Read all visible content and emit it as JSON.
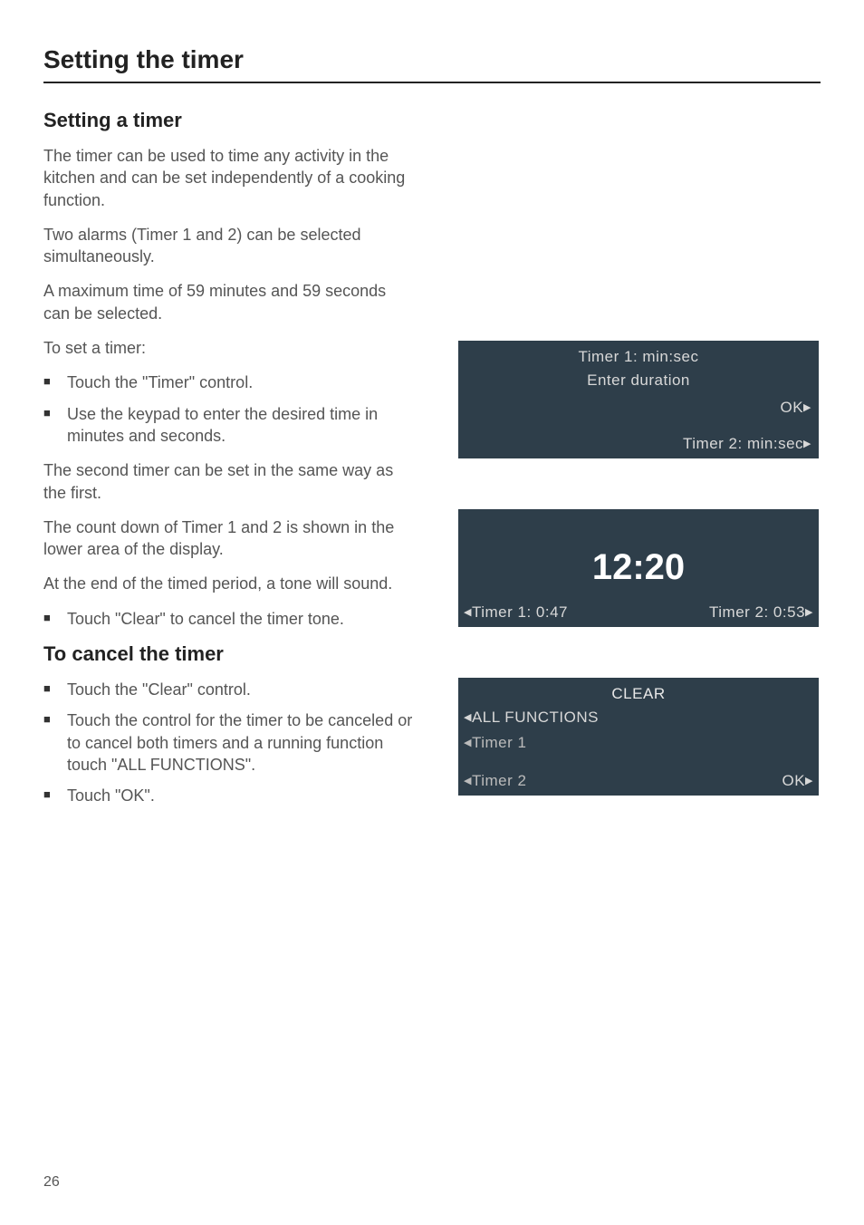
{
  "title": "Setting the timer",
  "left": {
    "h1": "Setting a timer",
    "p1": "The timer can be used to time any activity in the kitchen and can be set independently of a cooking function.",
    "p2": "Two alarms (Timer 1 and 2) can be selected simultaneously.",
    "p3": "A maximum time of 59 minutes and 59 seconds can be selected.",
    "p4": "To set a timer:",
    "b1": "Touch the \"Timer\" control.",
    "b2": "Use the keypad to enter the desired time in minutes and seconds.",
    "p5": "The second timer can be set in the same way as the first.",
    "p6": "The count down of Timer 1 and 2 is shown in the lower area of the display.",
    "p7": "At the end of the timed period, a tone will sound.",
    "b3": "Touch \"Clear\" to cancel the timer tone.",
    "h2": "To cancel the timer",
    "b4": "Touch the \"Clear\" control.",
    "b5": "Touch the control for the timer to be canceled or to cancel both timers and a running function touch \"ALL FUNCTIONS\".",
    "b6": "Touch \"OK\"."
  },
  "lcd1": {
    "l1": "Timer 1: min:sec",
    "l2": "Enter duration",
    "l3": "OK",
    "l4": "Timer 2: min:sec"
  },
  "lcd2": {
    "big": "12:20",
    "bl": "Timer 1: 0:47",
    "br": "Timer 2: 0:53"
  },
  "lcd3": {
    "clr": "CLEAR",
    "a1": "ALL FUNCTIONS",
    "a2": "Timer 1",
    "a3": "Timer 2",
    "ok": "OK"
  },
  "pageNum": "26"
}
